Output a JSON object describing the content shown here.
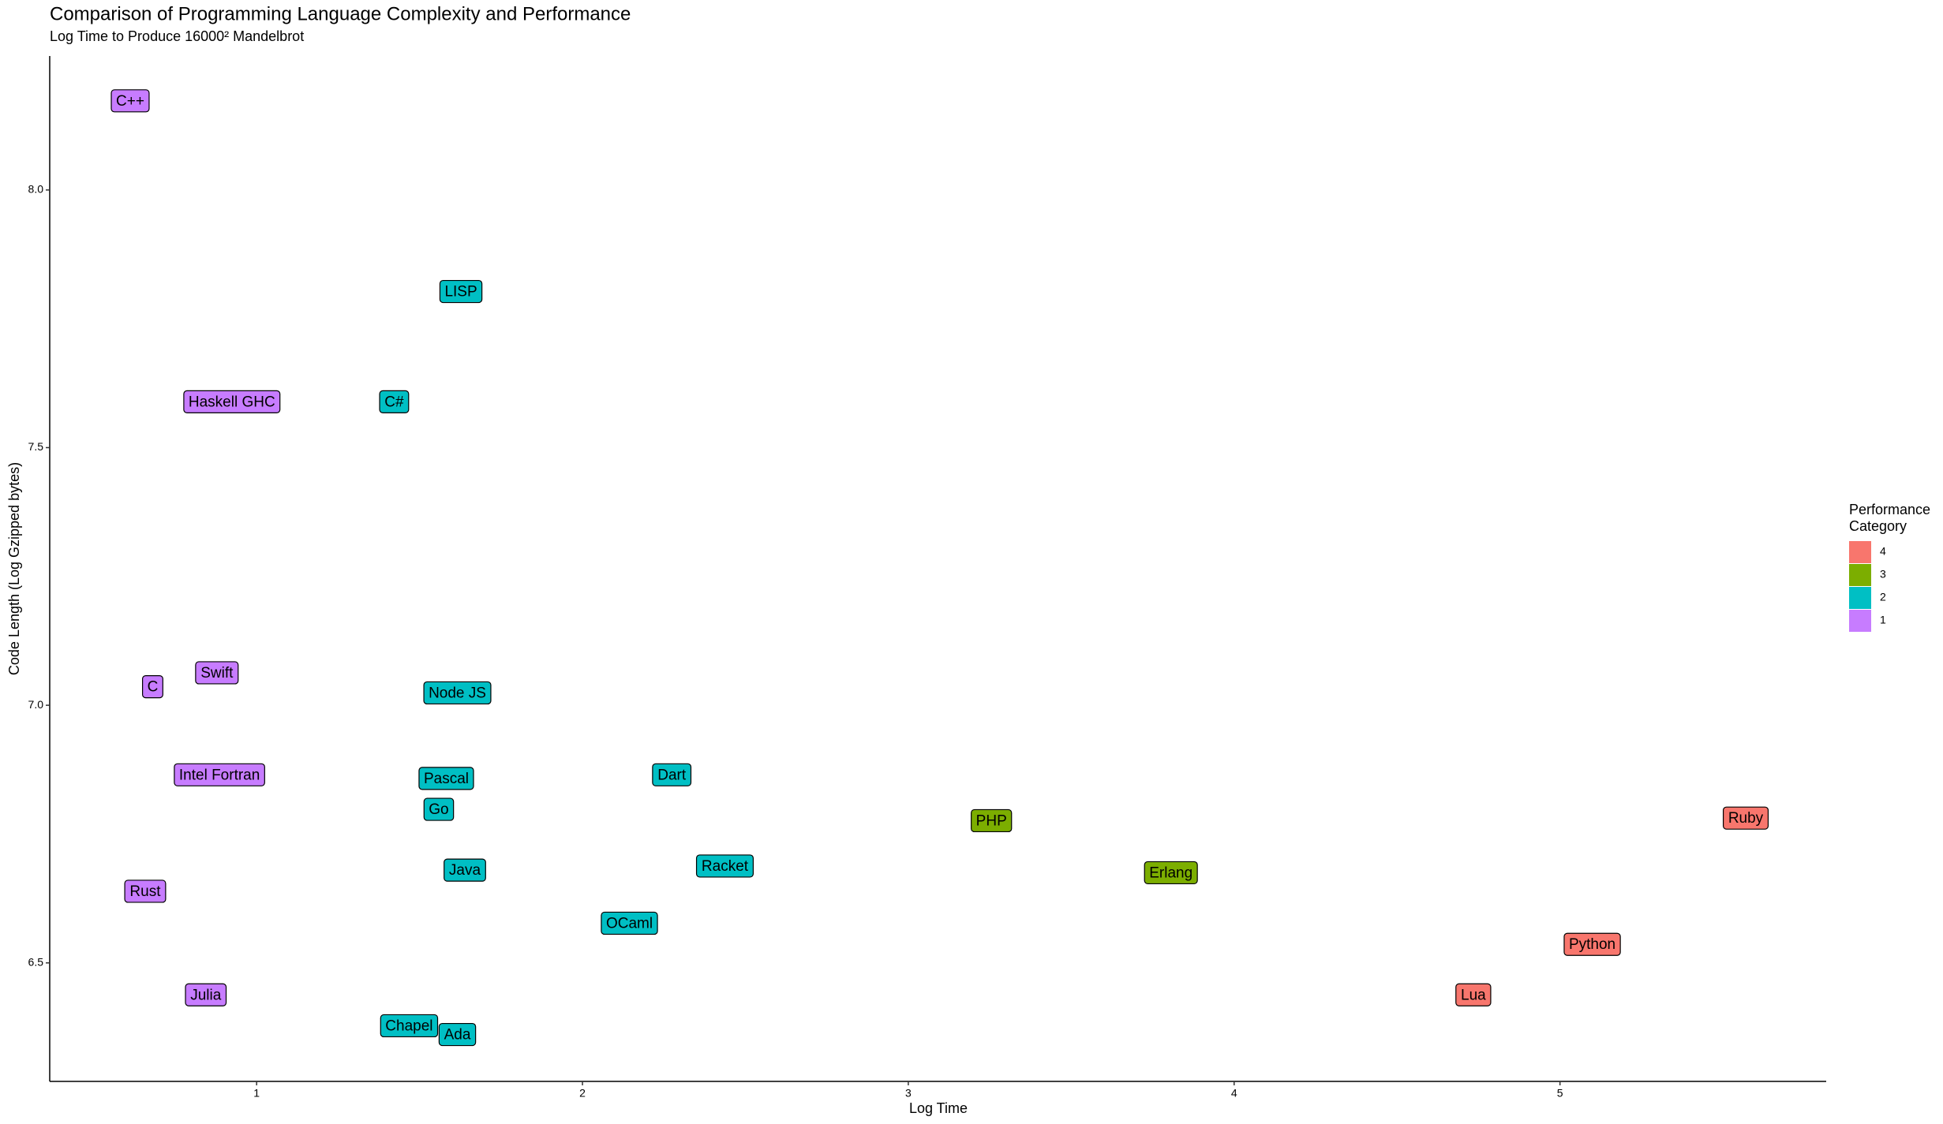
{
  "chart_data": {
    "type": "scatter",
    "title": "Comparison of Programming Language Complexity and Performance",
    "subtitle": "Log Time to Produce 16000² Mandelbrot",
    "x_label": "Log Time",
    "y_label": "Code Length (Log Gzipped bytes)",
    "legend_title": "Performance Category",
    "xlim": [
      0.365,
      5.817
    ],
    "ylim": [
      6.27,
      8.26
    ],
    "xticks": [
      1,
      2,
      3,
      4,
      5
    ],
    "yticks": [
      {
        "value": 8.0,
        "label": "8.0"
      },
      7.5,
      {
        "value": 7.0,
        "label": "7.0"
      },
      6.5
    ],
    "grid": false,
    "series": [
      {
        "name": "4",
        "color": "#F8766D",
        "labels": [
          "Ruby",
          "Python",
          "Lua"
        ],
        "x": [
          5.57,
          5.099,
          4.734
        ],
        "values": [
          6.781,
          6.536,
          6.438
        ]
      },
      {
        "name": "3",
        "color": "#7CAE00",
        "labels": [
          "PHP",
          "Erlang"
        ],
        "x": [
          3.255,
          3.806
        ],
        "values": [
          6.776,
          6.675
        ]
      },
      {
        "name": "2",
        "color": "#00BFC4",
        "labels": [
          "LISP",
          "C#",
          "Node JS",
          "Pascal",
          "Dart",
          "Go",
          "Java",
          "Racket",
          "OCaml",
          "Chapel",
          "Ada"
        ],
        "x": [
          1.627,
          1.422,
          1.616,
          1.582,
          2.274,
          1.559,
          1.639,
          2.437,
          2.144,
          1.468,
          1.616
        ],
        "values": [
          7.803,
          7.589,
          7.024,
          6.858,
          6.865,
          6.798,
          6.68,
          6.688,
          6.577,
          6.378,
          6.361
        ]
      },
      {
        "name": "1",
        "color": "#C77CFF",
        "labels": [
          "C++",
          "Haskell GHC",
          "C",
          "Swift",
          "Intel Fortran",
          "Rust",
          "Julia"
        ],
        "x": [
          0.612,
          0.924,
          0.681,
          0.878,
          0.886,
          0.658,
          0.844
        ],
        "values": [
          8.173,
          7.589,
          7.036,
          7.063,
          6.865,
          6.639,
          6.438
        ]
      }
    ]
  }
}
